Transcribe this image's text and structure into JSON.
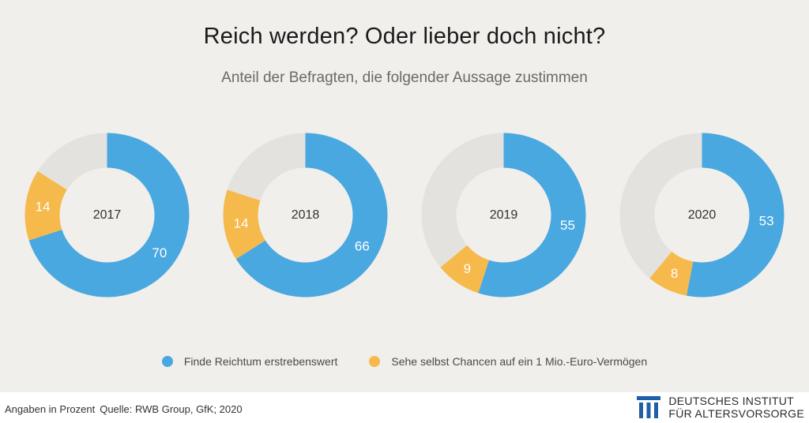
{
  "title": "Reich werden? Oder lieber doch nicht?",
  "subtitle": "Anteil der Befragten, die folgender Aussage zustimmen",
  "colors": {
    "blue": "#4aa8e0",
    "orange": "#f6b94b",
    "rest": "#e4e2de",
    "label": "#ffffff",
    "center": "#333333"
  },
  "chart_data": {
    "type": "pie",
    "variant": "donut",
    "categories": [
      "2017",
      "2018",
      "2019",
      "2020"
    ],
    "series": [
      {
        "name": "Finde Reichtum erstrebenswert",
        "values": [
          70,
          66,
          55,
          53
        ]
      },
      {
        "name": "Sehe selbst Chancen auf ein 1 Mio.-Euro-Vermögen",
        "values": [
          14,
          14,
          9,
          8
        ]
      }
    ],
    "unit": "Angaben in Prozent"
  },
  "legend": {
    "item1": "Finde Reichtum erstrebenswert",
    "item2": "Sehe selbst Chancen auf ein 1 Mio.-Euro-Vermögen"
  },
  "footer": {
    "note": "Angaben in Prozent",
    "source": "Quelle: RWB Group, GfK; 2020",
    "logo_line1": "DEUTSCHES INSTITUT",
    "logo_line2": "FÜR ALTERSVORSORGE"
  }
}
